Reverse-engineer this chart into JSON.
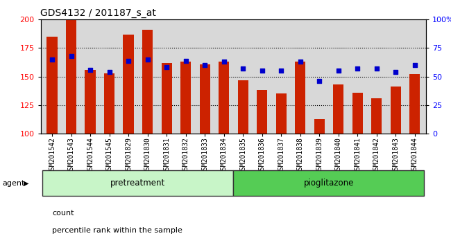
{
  "title": "GDS4132 / 201187_s_at",
  "categories": [
    "GSM201542",
    "GSM201543",
    "GSM201544",
    "GSM201545",
    "GSM201829",
    "GSM201830",
    "GSM201831",
    "GSM201832",
    "GSM201833",
    "GSM201834",
    "GSM201835",
    "GSM201836",
    "GSM201837",
    "GSM201838",
    "GSM201839",
    "GSM201840",
    "GSM201841",
    "GSM201842",
    "GSM201843",
    "GSM201844"
  ],
  "counts": [
    185,
    200,
    156,
    153,
    187,
    191,
    162,
    163,
    161,
    163,
    147,
    138,
    135,
    163,
    113,
    143,
    136,
    131,
    141,
    152
  ],
  "percentiles": [
    65,
    68,
    56,
    54,
    64,
    65,
    58,
    64,
    60,
    63,
    57,
    55,
    55,
    63,
    46,
    55,
    57,
    57,
    54,
    60
  ],
  "group_labels": [
    "pretreatment",
    "pioglitazone"
  ],
  "group_ranges": [
    [
      0,
      10
    ],
    [
      10,
      20
    ]
  ],
  "group_colors_light": [
    "#c8f5c8",
    "#90e890"
  ],
  "group_colors_dark": [
    "#90e890",
    "#55cc55"
  ],
  "bar_color": "#CC2200",
  "dot_color": "#0000CC",
  "bg_color": "#D8D8D8",
  "ylim_left": [
    100,
    200
  ],
  "ylim_right": [
    0,
    100
  ],
  "yticks_left": [
    100,
    125,
    150,
    175,
    200
  ],
  "yticks_right": [
    0,
    25,
    50,
    75,
    100
  ],
  "grid_lines": [
    125,
    150,
    175
  ],
  "title_fontsize": 10,
  "tick_label_fontsize": 7,
  "agent_label": "agent"
}
